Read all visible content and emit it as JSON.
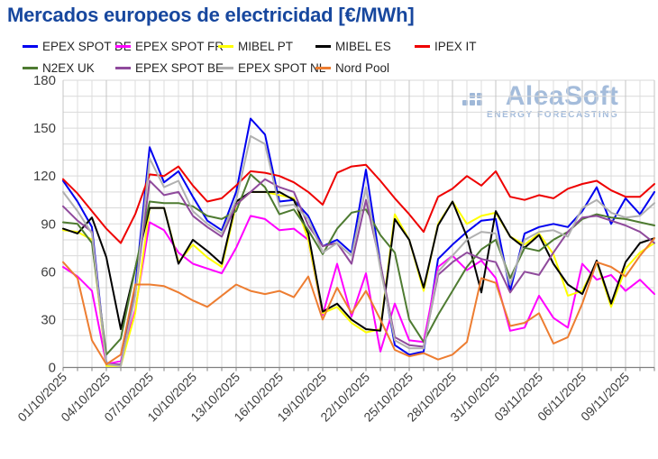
{
  "title": {
    "text": "Mercados europeos de electricidad [€/MWh]"
  },
  "logo": {
    "name": "AleaSoft",
    "tagline": "ENERGY FORECASTING",
    "color": "#a4bcdb"
  },
  "legend": {
    "rows": [
      [
        0,
        1,
        2,
        3,
        4
      ],
      [
        5,
        6,
        7,
        8
      ]
    ],
    "items": [
      {
        "label": "EPEX SPOT DE",
        "color": "#0000f0"
      },
      {
        "label": "EPEX SPOT FR",
        "color": "#ff00ff"
      },
      {
        "label": "MIBEL PT",
        "color": "#ffff00"
      },
      {
        "label": "MIBEL ES",
        "color": "#000000"
      },
      {
        "label": "IPEX IT",
        "color": "#ee0000"
      },
      {
        "label": "N2EX UK",
        "color": "#4e7b31"
      },
      {
        "label": "EPEX SPOT BE",
        "color": "#8f4a9c"
      },
      {
        "label": "EPEX SPOT NL",
        "color": "#b0b0b0"
      },
      {
        "label": "Nord Pool",
        "color": "#ed7d31"
      }
    ]
  },
  "chart_data": {
    "type": "line",
    "title": "Mercados europeos de electricidad [€/MWh]",
    "xlabel": "",
    "ylabel": "",
    "ylim": [
      0,
      180
    ],
    "y_ticks": [
      0,
      30,
      60,
      90,
      120,
      150,
      180
    ],
    "y_minor_step": 10,
    "grid": true,
    "legend_position": "top",
    "x_tick_step": 3,
    "x": [
      "01/10/2025",
      "02/10/2025",
      "03/10/2025",
      "04/10/2025",
      "05/10/2025",
      "06/10/2025",
      "07/10/2025",
      "08/10/2025",
      "09/10/2025",
      "10/10/2025",
      "11/10/2025",
      "12/10/2025",
      "13/10/2025",
      "14/10/2025",
      "15/10/2025",
      "16/10/2025",
      "17/10/2025",
      "18/10/2025",
      "19/10/2025",
      "20/10/2025",
      "21/10/2025",
      "22/10/2025",
      "23/10/2025",
      "24/10/2025",
      "25/10/2025",
      "26/10/2025",
      "27/10/2025",
      "28/10/2025",
      "29/10/2025",
      "30/10/2025",
      "31/10/2025",
      "01/11/2025",
      "02/11/2025",
      "03/11/2025",
      "04/11/2025",
      "05/11/2025",
      "06/11/2025",
      "07/11/2025",
      "08/11/2025",
      "09/11/2025",
      "10/11/2025",
      "11/11/2025"
    ],
    "series": [
      {
        "name": "EPEX SPOT DE",
        "color": "#0000f0",
        "values": [
          117,
          104,
          88,
          3,
          1,
          50,
          138,
          116,
          123,
          107,
          92,
          86,
          110,
          156,
          146,
          104,
          105,
          95,
          76,
          80,
          72,
          124,
          65,
          14,
          8,
          10,
          68,
          77,
          85,
          92,
          93,
          48,
          84,
          88,
          90,
          88,
          98,
          113,
          90,
          106,
          96,
          110
        ]
      },
      {
        "name": "EPEX SPOT FR",
        "color": "#ff00ff",
        "values": [
          63,
          57,
          48,
          2,
          4,
          36,
          91,
          86,
          72,
          65,
          62,
          59,
          75,
          95,
          93,
          86,
          87,
          80,
          33,
          65,
          32,
          59,
          10,
          40,
          17,
          16,
          63,
          70,
          61,
          67,
          56,
          23,
          25,
          45,
          31,
          25,
          65,
          55,
          58,
          48,
          55,
          46
        ]
      },
      {
        "name": "MIBEL PT",
        "color": "#ffff00",
        "values": [
          86,
          85,
          80,
          1,
          1,
          34,
          100,
          100,
          66,
          77,
          69,
          63,
          102,
          110,
          110,
          108,
          106,
          80,
          34,
          38,
          28,
          22,
          24,
          96,
          80,
          48,
          90,
          104,
          90,
          95,
          97,
          82,
          77,
          84,
          71,
          45,
          48,
          66,
          38,
          62,
          72,
          78
        ]
      },
      {
        "name": "MIBEL ES",
        "color": "#000000",
        "values": [
          87,
          84,
          94,
          69,
          24,
          62,
          100,
          100,
          65,
          80,
          73,
          65,
          104,
          110,
          110,
          110,
          105,
          84,
          35,
          40,
          30,
          24,
          23,
          93,
          80,
          50,
          89,
          104,
          82,
          47,
          98,
          82,
          75,
          83,
          65,
          52,
          46,
          67,
          40,
          66,
          78,
          81
        ]
      },
      {
        "name": "IPEX IT",
        "color": "#ee0000",
        "values": [
          118,
          109,
          98,
          87,
          78,
          96,
          121,
          120,
          126,
          114,
          104,
          106,
          114,
          123,
          122,
          120,
          116,
          110,
          102,
          122,
          126,
          127,
          117,
          106,
          96,
          85,
          107,
          112,
          120,
          114,
          123,
          107,
          105,
          108,
          106,
          112,
          115,
          117,
          111,
          107,
          107,
          115
        ]
      },
      {
        "name": "N2EX UK",
        "color": "#4e7b31",
        "values": [
          91,
          90,
          78,
          8,
          18,
          62,
          104,
          103,
          103,
          101,
          95,
          93,
          98,
          121,
          113,
          96,
          99,
          86,
          71,
          87,
          97,
          99,
          83,
          72,
          30,
          16,
          33,
          48,
          63,
          74,
          80,
          56,
          75,
          73,
          80,
          85,
          93,
          96,
          94,
          93,
          91,
          89
        ]
      },
      {
        "name": "EPEX SPOT BE",
        "color": "#8f4a9c",
        "values": [
          101,
          92,
          85,
          2,
          2,
          46,
          117,
          108,
          110,
          95,
          88,
          82,
          102,
          110,
          118,
          113,
          110,
          89,
          76,
          78,
          65,
          105,
          65,
          19,
          14,
          13,
          58,
          66,
          72,
          68,
          66,
          47,
          60,
          58,
          72,
          85,
          94,
          95,
          92,
          89,
          85,
          78
        ]
      },
      {
        "name": "EPEX SPOT NL",
        "color": "#b0b0b0",
        "values": [
          110,
          98,
          84,
          2,
          1,
          45,
          131,
          113,
          117,
          98,
          90,
          84,
          105,
          145,
          140,
          101,
          102,
          93,
          72,
          78,
          70,
          113,
          62,
          17,
          12,
          12,
          60,
          70,
          80,
          85,
          84,
          52,
          80,
          85,
          86,
          82,
          100,
          105,
          97,
          94,
          95,
          103
        ]
      },
      {
        "name": "Nord Pool",
        "color": "#ed7d31",
        "values": [
          66,
          56,
          17,
          2,
          8,
          52,
          52,
          51,
          47,
          42,
          38,
          45,
          52,
          48,
          46,
          48,
          44,
          57,
          30,
          50,
          34,
          48,
          30,
          11,
          7,
          9,
          5,
          8,
          16,
          56,
          53,
          26,
          28,
          34,
          15,
          19,
          40,
          66,
          63,
          57,
          70,
          81
        ]
      }
    ]
  }
}
